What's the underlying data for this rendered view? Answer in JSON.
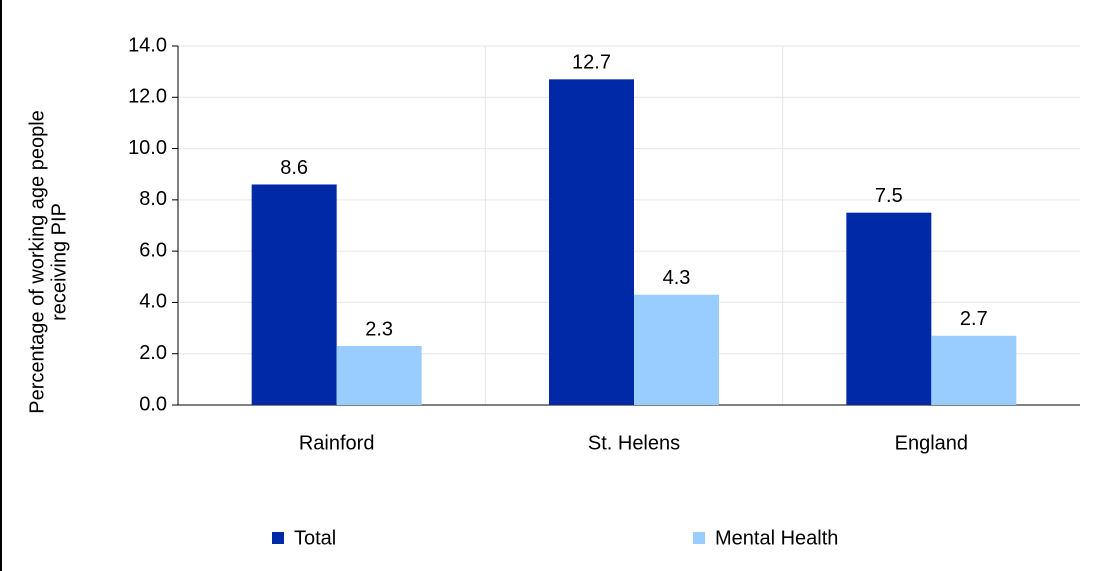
{
  "chart_data": {
    "type": "bar",
    "y_label": [
      "Percentage of working age people",
      "receiving PIP"
    ],
    "categories": [
      "Rainford",
      "St. Helens",
      "England"
    ],
    "series": [
      {
        "name": "Total",
        "color": "#0029a8",
        "values": [
          8.6,
          12.7,
          7.5
        ]
      },
      {
        "name": "Mental Health",
        "color": "#99ccff",
        "values": [
          2.3,
          4.3,
          2.7
        ]
      }
    ],
    "ylim": [
      0,
      14
    ],
    "yticks": [
      {
        "value": 0,
        "label": "0.0"
      },
      {
        "value": 2,
        "label": "2.0"
      },
      {
        "value": 4,
        "label": "4.0"
      },
      {
        "value": 6,
        "label": "6.0"
      },
      {
        "value": 8,
        "label": "8.0"
      },
      {
        "value": 10,
        "label": "10.0"
      },
      {
        "value": 12,
        "label": "12.0"
      },
      {
        "value": 14,
        "label": "14.0"
      }
    ],
    "grid": true,
    "legend": "bottom"
  }
}
